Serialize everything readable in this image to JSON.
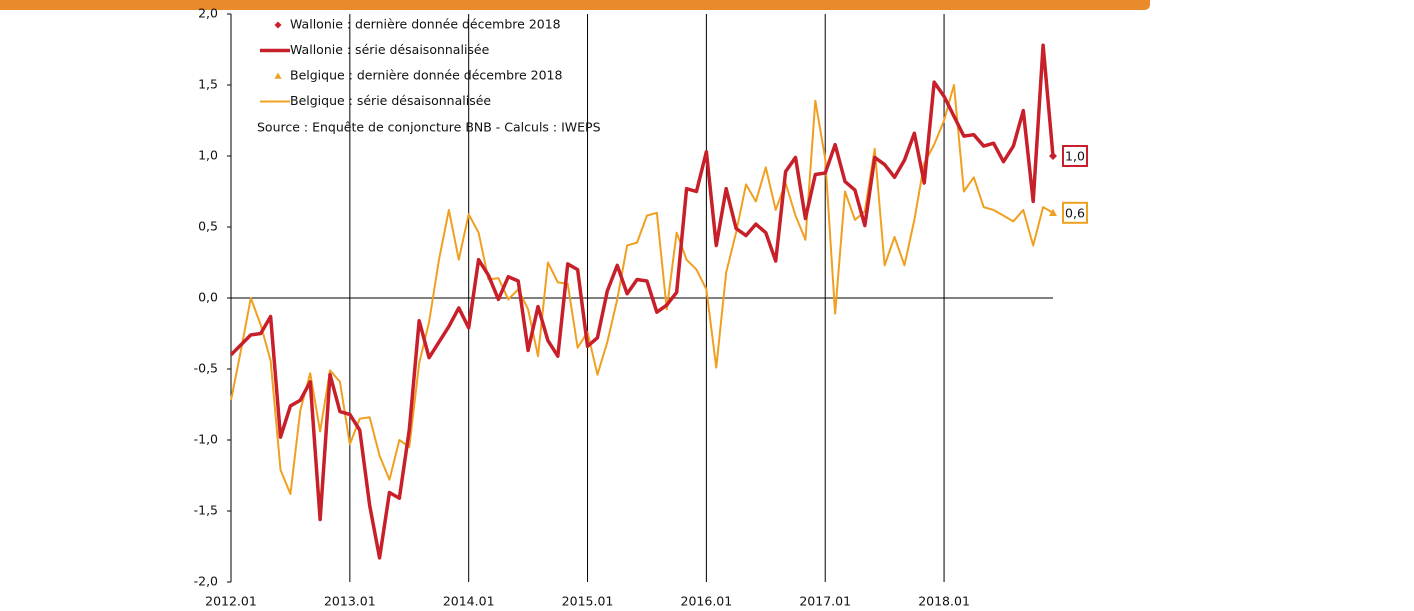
{
  "chart_data": {
    "type": "line",
    "annotations": [
      "Source : Enquête de conjoncture BNB - Calculs : IWEPS"
    ],
    "categories": [
      "2012.01",
      null,
      null,
      null,
      null,
      null,
      null,
      null,
      null,
      null,
      null,
      null,
      "2013.01",
      null,
      null,
      null,
      null,
      null,
      null,
      null,
      null,
      null,
      null,
      null,
      "2014.01",
      null,
      null,
      null,
      null,
      null,
      null,
      null,
      null,
      null,
      null,
      null,
      "2015.01",
      null,
      null,
      null,
      null,
      null,
      null,
      null,
      null,
      null,
      null,
      null,
      "2016.01",
      null,
      null,
      null,
      null,
      null,
      null,
      null,
      null,
      null,
      null,
      null,
      "2017.01",
      null,
      null,
      null,
      null,
      null,
      null,
      null,
      null,
      null,
      null,
      null,
      "2018.01",
      null,
      null,
      null,
      null,
      null,
      null,
      null,
      null,
      null,
      null,
      null
    ],
    "ylim": [
      -2,
      2
    ],
    "yticks": [
      {
        "value": -2,
        "label": "-2,0"
      },
      {
        "value": -1.5,
        "label": "-1,5"
      },
      {
        "value": -1,
        "label": "-1,0"
      },
      {
        "value": -0.5,
        "label": "-0,5"
      },
      {
        "value": 0,
        "label": "0,0"
      },
      {
        "value": 0.5,
        "label": "0,5"
      },
      {
        "value": 1,
        "label": "1,0"
      },
      {
        "value": 1.5,
        "label": "1,5"
      },
      {
        "value": 2,
        "label": "2,0"
      }
    ],
    "legend": "upper left",
    "series": [
      {
        "name": "Wallonie : dernière donnée décembre 2018",
        "color": "#c8202a",
        "marker": "diamond",
        "values": [
          null,
          null,
          null,
          null,
          null,
          null,
          null,
          null,
          null,
          null,
          null,
          null,
          null,
          null,
          null,
          null,
          null,
          null,
          null,
          null,
          null,
          null,
          null,
          null,
          null,
          null,
          null,
          null,
          null,
          null,
          null,
          null,
          null,
          null,
          null,
          null,
          null,
          null,
          null,
          null,
          null,
          null,
          null,
          null,
          null,
          null,
          null,
          null,
          null,
          null,
          null,
          null,
          null,
          null,
          null,
          null,
          null,
          null,
          null,
          null,
          null,
          null,
          null,
          null,
          null,
          null,
          null,
          null,
          null,
          null,
          null,
          null,
          null,
          null,
          null,
          null,
          null,
          null,
          null,
          null,
          null,
          null,
          null,
          1.0
        ],
        "value_labels": [
          null,
          null,
          null,
          null,
          null,
          null,
          null,
          null,
          null,
          null,
          null,
          null,
          null,
          null,
          null,
          null,
          null,
          null,
          null,
          null,
          null,
          null,
          null,
          null,
          null,
          null,
          null,
          null,
          null,
          null,
          null,
          null,
          null,
          null,
          null,
          null,
          null,
          null,
          null,
          null,
          null,
          null,
          null,
          null,
          null,
          null,
          null,
          null,
          null,
          null,
          null,
          null,
          null,
          null,
          null,
          null,
          null,
          null,
          null,
          null,
          null,
          null,
          null,
          null,
          null,
          null,
          null,
          null,
          null,
          null,
          null,
          null,
          null,
          null,
          null,
          null,
          null,
          null,
          null,
          null,
          null,
          null,
          null,
          "1,0"
        ]
      },
      {
        "name": "Wallonie : série désaisonnalisée",
        "color": "#c8202a",
        "values": [
          -0.4,
          -0.33,
          -0.26,
          -0.25,
          -0.13,
          -0.98,
          -0.76,
          -0.72,
          -0.59,
          -1.56,
          -0.54,
          -0.8,
          -0.82,
          -0.93,
          -1.46,
          -1.83,
          -1.37,
          -1.41,
          -0.93,
          -0.16,
          -0.42,
          -0.31,
          -0.2,
          -0.07,
          -0.21,
          0.27,
          0.16,
          -0.01,
          0.15,
          0.12,
          -0.37,
          -0.06,
          -0.3,
          -0.41,
          0.24,
          0.2,
          -0.34,
          -0.28,
          0.05,
          0.23,
          0.03,
          0.13,
          0.12,
          -0.1,
          -0.05,
          0.04,
          0.77,
          0.75,
          1.03,
          0.37,
          0.77,
          0.49,
          0.44,
          0.52,
          0.46,
          0.26,
          0.89,
          0.99,
          0.56,
          0.87,
          0.88,
          1.08,
          0.82,
          0.76,
          0.51,
          0.99,
          0.94,
          0.85,
          0.97,
          1.16,
          0.81,
          1.52,
          1.42,
          1.28,
          1.14,
          1.15,
          1.07,
          1.09,
          0.96,
          1.07,
          1.32,
          0.68,
          1.78,
          1.0
        ]
      },
      {
        "name": "Belgique : dernière donnée décembre 2018",
        "color": "#f0a020",
        "marker": "triangle",
        "values": [
          null,
          null,
          null,
          null,
          null,
          null,
          null,
          null,
          null,
          null,
          null,
          null,
          null,
          null,
          null,
          null,
          null,
          null,
          null,
          null,
          null,
          null,
          null,
          null,
          null,
          null,
          null,
          null,
          null,
          null,
          null,
          null,
          null,
          null,
          null,
          null,
          null,
          null,
          null,
          null,
          null,
          null,
          null,
          null,
          null,
          null,
          null,
          null,
          null,
          null,
          null,
          null,
          null,
          null,
          null,
          null,
          null,
          null,
          null,
          null,
          null,
          null,
          null,
          null,
          null,
          null,
          null,
          null,
          null,
          null,
          null,
          null,
          null,
          null,
          null,
          null,
          null,
          null,
          null,
          null,
          null,
          null,
          null,
          0.6
        ],
        "value_labels": [
          null,
          null,
          null,
          null,
          null,
          null,
          null,
          null,
          null,
          null,
          null,
          null,
          null,
          null,
          null,
          null,
          null,
          null,
          null,
          null,
          null,
          null,
          null,
          null,
          null,
          null,
          null,
          null,
          null,
          null,
          null,
          null,
          null,
          null,
          null,
          null,
          null,
          null,
          null,
          null,
          null,
          null,
          null,
          null,
          null,
          null,
          null,
          null,
          null,
          null,
          null,
          null,
          null,
          null,
          null,
          null,
          null,
          null,
          null,
          null,
          null,
          null,
          null,
          null,
          null,
          null,
          null,
          null,
          null,
          null,
          null,
          null,
          null,
          null,
          null,
          null,
          null,
          null,
          null,
          null,
          null,
          null,
          null,
          "0,6"
        ]
      },
      {
        "name": "Belgique : série désaisonnalisée",
        "color": "#f0a020",
        "values": [
          -0.72,
          -0.37,
          0.0,
          -0.19,
          -0.44,
          -1.21,
          -1.38,
          -0.79,
          -0.53,
          -0.94,
          -0.51,
          -0.59,
          -1.03,
          -0.85,
          -0.84,
          -1.11,
          -1.28,
          -1.0,
          -1.05,
          -0.46,
          -0.17,
          0.27,
          0.62,
          0.27,
          0.59,
          0.46,
          0.13,
          0.14,
          -0.01,
          0.06,
          -0.08,
          -0.41,
          0.25,
          0.11,
          0.1,
          -0.35,
          -0.24,
          -0.54,
          -0.31,
          -0.01,
          0.37,
          0.39,
          0.58,
          0.6,
          -0.08,
          0.46,
          0.27,
          0.2,
          0.06,
          -0.49,
          0.18,
          0.46,
          0.8,
          0.68,
          0.92,
          0.62,
          0.81,
          0.58,
          0.41,
          1.39,
          0.98,
          -0.11,
          0.75,
          0.55,
          0.61,
          1.05,
          0.23,
          0.43,
          0.23,
          0.55,
          0.95,
          1.08,
          1.25,
          1.5,
          0.75,
          0.85,
          0.64,
          0.62,
          0.58,
          0.54,
          0.62,
          0.37,
          0.64,
          0.6
        ]
      }
    ]
  }
}
